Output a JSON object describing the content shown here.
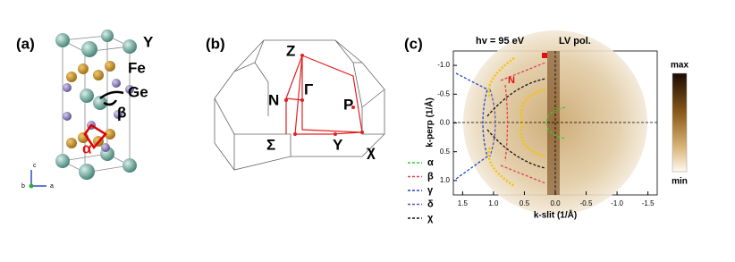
{
  "panels": {
    "a": {
      "label": "(a)",
      "atoms": {
        "y": "Y",
        "fe": "Fe",
        "ge": "Ge"
      },
      "angles": {
        "beta": "β",
        "alpha": "α"
      },
      "axes": {
        "c": "c",
        "b": "b",
        "a": "a"
      }
    },
    "b": {
      "label": "(b)",
      "points": {
        "z": "Z",
        "gamma": "Γ",
        "n": "N",
        "p": "P",
        "sigma": "Σ",
        "y": "Y",
        "chi": "χ"
      }
    },
    "c": {
      "label": "(c)",
      "energy": "hv = 95 eV",
      "polarization": "LV pol.",
      "point": "N",
      "xlabel": "k-slit (1/Å)",
      "ylabel": "k-perp (1/Å)",
      "xlim": [
        1.65,
        -1.65
      ],
      "ylim": [
        -1.25,
        1.25
      ],
      "xticks": [
        {
          "value": 1.5,
          "label": "1.5"
        },
        {
          "value": 1,
          "label": "1.0"
        },
        {
          "value": 0.5,
          "label": "0.5"
        },
        {
          "value": 0,
          "label": "0.0"
        },
        {
          "value": -0.5,
          "label": "-0.5"
        },
        {
          "value": -1,
          "label": "-1.0"
        },
        {
          "value": -1.5,
          "label": "-1.5"
        }
      ],
      "yticks": [
        {
          "value": -1,
          "label": "-1.0"
        },
        {
          "value": -0.5,
          "label": "-0.5"
        },
        {
          "value": 0,
          "label": "0.0"
        },
        {
          "value": 0.5,
          "label": "0.5"
        },
        {
          "value": 1,
          "label": "1.0"
        }
      ],
      "colorbar": {
        "max": "max",
        "min": "min"
      },
      "legend": [
        {
          "name": "α",
          "color": "#33cc33"
        },
        {
          "name": "β",
          "color": "#e0405a"
        },
        {
          "name": "γ",
          "color": "#2244cc"
        },
        {
          "name": "δ",
          "color": "#5555bb"
        },
        {
          "name": "χ",
          "color": "#111111"
        }
      ]
    }
  }
}
